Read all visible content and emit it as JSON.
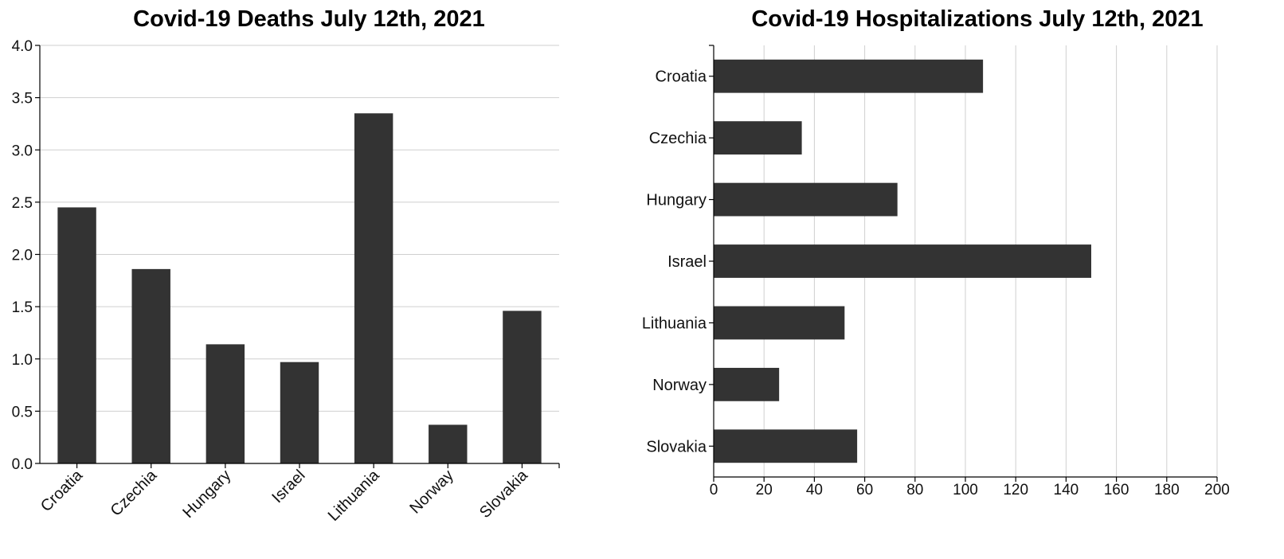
{
  "chart_data": [
    {
      "type": "bar",
      "orientation": "vertical",
      "title": "Covid-19 Deaths July 12th, 2021",
      "categories": [
        "Croatia",
        "Czechia",
        "Hungary",
        "Israel",
        "Lithuania",
        "Norway",
        "Slovakia"
      ],
      "values": [
        2.45,
        1.86,
        1.14,
        0.97,
        3.35,
        0.37,
        1.46
      ],
      "ylim": [
        0,
        4.0
      ],
      "yticks": [
        "0.0",
        "0.5",
        "1.0",
        "1.5",
        "2.0",
        "2.5",
        "3.0",
        "3.5",
        "4.0"
      ],
      "grid": "horizontal",
      "bar_color": "#333333"
    },
    {
      "type": "bar",
      "orientation": "horizontal",
      "title": "Covid-19 Hospitalizations July 12th, 2021",
      "categories": [
        "Croatia",
        "Czechia",
        "Hungary",
        "Israel",
        "Lithuania",
        "Norway",
        "Slovakia"
      ],
      "values": [
        107,
        35,
        73,
        150,
        52,
        26,
        57
      ],
      "xlim": [
        0,
        200
      ],
      "xticks": [
        "0",
        "20",
        "40",
        "60",
        "80",
        "100",
        "120",
        "140",
        "160",
        "180",
        "200"
      ],
      "grid": "vertical",
      "bar_color": "#333333"
    }
  ]
}
